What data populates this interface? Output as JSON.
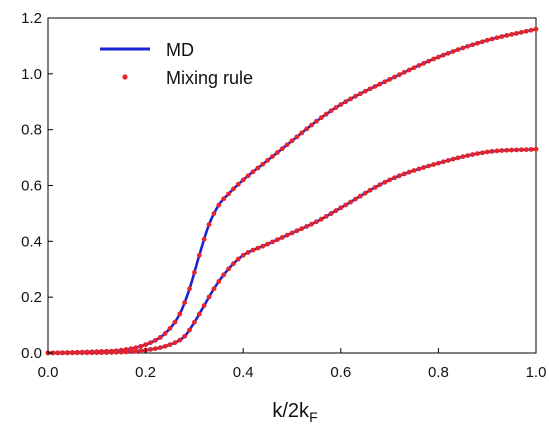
{
  "chart_data": {
    "type": "line",
    "title": "",
    "xlabel": {
      "main": "k/2k",
      "subscript": "F"
    },
    "ylabel": "",
    "xlim": [
      0.0,
      1.0
    ],
    "ylim": [
      0.0,
      1.2
    ],
    "x_ticks": [
      "0.0",
      "0.2",
      "0.4",
      "0.6",
      "0.8",
      "1.0"
    ],
    "y_ticks": [
      "0.0",
      "0.2",
      "0.4",
      "0.6",
      "0.8",
      "1.0",
      "1.2"
    ],
    "grid": false,
    "legend_position": "top-left",
    "legend": [
      {
        "label": "MD",
        "style": "line",
        "color": "#1a24d6"
      },
      {
        "label": "Mixing rule",
        "style": "dots",
        "color": "#e8242b"
      }
    ],
    "curves": [
      {
        "x": [
          0.0,
          0.1,
          0.15,
          0.2,
          0.24,
          0.27,
          0.29,
          0.31,
          0.33,
          0.35,
          0.37,
          0.4,
          0.45,
          0.5,
          0.55,
          0.6,
          0.7,
          0.8,
          0.9,
          1.0
        ],
        "y": [
          0.0,
          0.005,
          0.01,
          0.03,
          0.07,
          0.14,
          0.23,
          0.35,
          0.46,
          0.53,
          0.57,
          0.62,
          0.69,
          0.76,
          0.83,
          0.89,
          0.98,
          1.06,
          1.12,
          1.16
        ]
      },
      {
        "x": [
          0.0,
          0.15,
          0.2,
          0.25,
          0.28,
          0.3,
          0.32,
          0.34,
          0.36,
          0.38,
          0.4,
          0.45,
          0.5,
          0.55,
          0.6,
          0.7,
          0.8,
          0.9,
          1.0
        ],
        "y": [
          0.0,
          0.003,
          0.01,
          0.03,
          0.06,
          0.11,
          0.17,
          0.23,
          0.28,
          0.32,
          0.35,
          0.39,
          0.43,
          0.47,
          0.52,
          0.62,
          0.68,
          0.72,
          0.73
        ]
      }
    ]
  }
}
